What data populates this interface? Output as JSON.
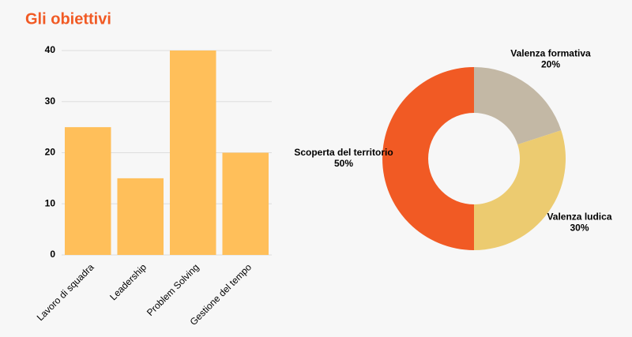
{
  "title": "Gli obiettivi",
  "chart_data": [
    {
      "type": "bar",
      "categories": [
        "Lavoro di squadra",
        "Leadership",
        "Problem Solving",
        "Gestione del tempo"
      ],
      "values": [
        25,
        15,
        40,
        20
      ],
      "color": "#ffbf5a",
      "ylim": [
        0,
        40
      ],
      "yticks": [
        0,
        10,
        20,
        30,
        40
      ],
      "grid": true
    },
    {
      "type": "donut",
      "categories": [
        "Valenza formativa",
        "Valenza ludica",
        "Scoperta del territorio"
      ],
      "values": [
        20,
        30,
        50
      ],
      "value_labels": [
        "20%",
        "30%",
        "50%"
      ],
      "colors": [
        "#c3b8a5",
        "#eccb70",
        "#f15a24"
      ]
    }
  ]
}
